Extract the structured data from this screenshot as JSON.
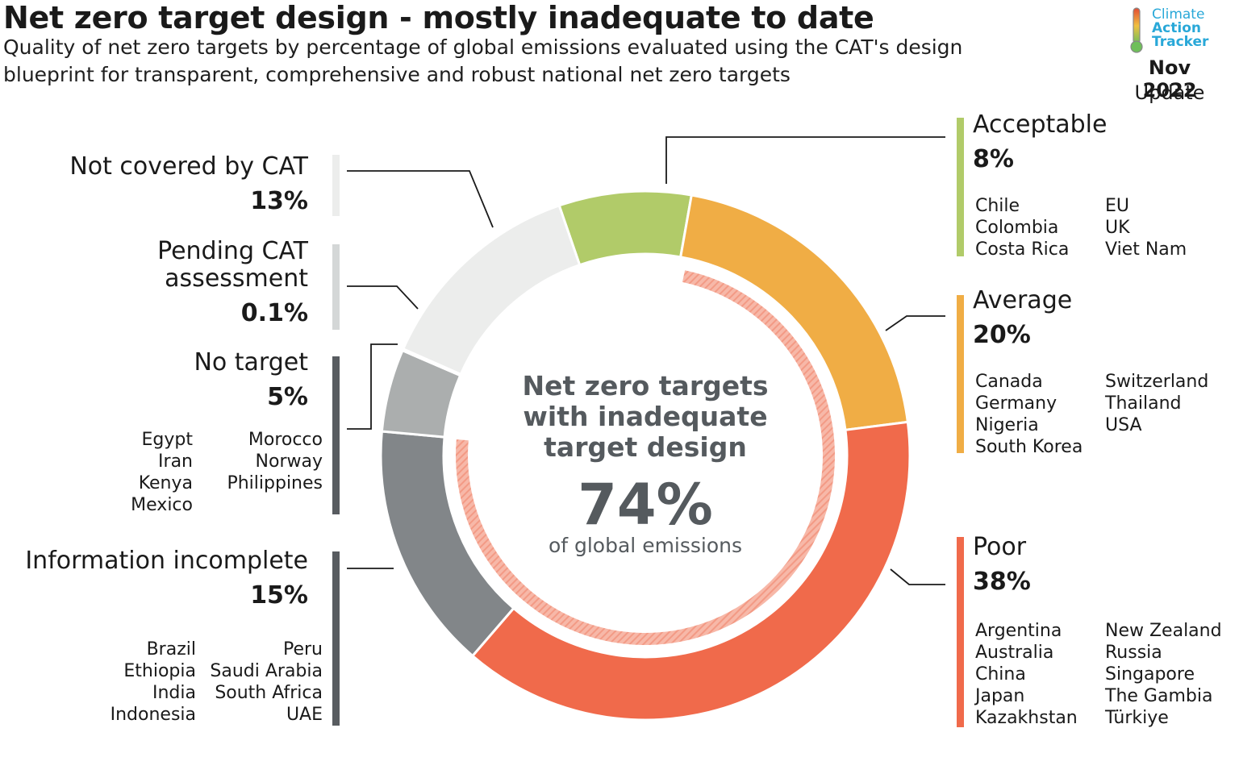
{
  "header": {
    "title": "Net zero target design - mostly inadequate to date",
    "subtitle": "Quality of net zero targets by percentage of global emissions evaluated using the CAT's design blueprint for transparent, comprehensive and robust national net zero targets",
    "logo_line1": "Climate",
    "logo_line2": "Action",
    "logo_line3": "Tracker",
    "date": "Nov 2022",
    "update": "Update"
  },
  "center": {
    "title": "Net zero targets with inadequate target design",
    "value": "74%",
    "subtitle": "of global emissions"
  },
  "colors": {
    "acceptable": "#b1cb69",
    "average": "#f0ad45",
    "poor": "#f06a4b",
    "information_incomplete": "#828689",
    "no_target": "#abaeae",
    "pending": "#d4d7d7",
    "not_covered": "#ecedec",
    "inner_arc": "#f5ab9c"
  },
  "chart_data": {
    "type": "pie",
    "variant": "donut",
    "title": "Net zero target design - mostly inadequate to date",
    "categories": [
      "Acceptable",
      "Average",
      "Poor",
      "Information incomplete",
      "No target",
      "Pending CAT assessment",
      "Not covered by CAT"
    ],
    "values": [
      8,
      20,
      38,
      15,
      5,
      0.1,
      13
    ],
    "labels": [
      "8%",
      "20%",
      "38%",
      "15%",
      "5%",
      "0.1%",
      "13%"
    ],
    "unit": "% of global emissions",
    "highlight": {
      "label": "Net zero targets with inadequate target design",
      "value": 74
    }
  },
  "categories": {
    "acceptable": {
      "name": "Acceptable",
      "pct": "8%",
      "col1": [
        "Chile",
        "Colombia",
        "Costa Rica"
      ],
      "col2": [
        "EU",
        "UK",
        "Viet Nam"
      ]
    },
    "average": {
      "name": "Average",
      "pct": "20%",
      "col1": [
        "Canada",
        "Germany",
        "Nigeria",
        "South Korea"
      ],
      "col2": [
        "Switzerland",
        "Thailand",
        "USA"
      ]
    },
    "poor": {
      "name": "Poor",
      "pct": "38%",
      "col1": [
        "Argentina",
        "Australia",
        "China",
        "Japan",
        "Kazakhstan"
      ],
      "col2": [
        "New Zealand",
        "Russia",
        "Singapore",
        "The Gambia",
        "Türkiye"
      ]
    },
    "not_covered": {
      "name": "Not covered by CAT",
      "pct": "13%"
    },
    "pending": {
      "name_line1": "Pending CAT",
      "name_line2": "assessment",
      "pct": "0.1%"
    },
    "no_target": {
      "name": "No target",
      "pct": "5%",
      "col1": [
        "Egypt",
        "Iran",
        "Kenya",
        "Mexico"
      ],
      "col2": [
        "Morocco",
        "Norway",
        "Philippines"
      ]
    },
    "information_incomplete": {
      "name": "Information incomplete",
      "pct": "15%",
      "col1": [
        "Brazil",
        "Ethiopia",
        "India",
        "Indonesia"
      ],
      "col2": [
        "Peru",
        "Saudi Arabia",
        "South Africa",
        "UAE"
      ]
    }
  }
}
